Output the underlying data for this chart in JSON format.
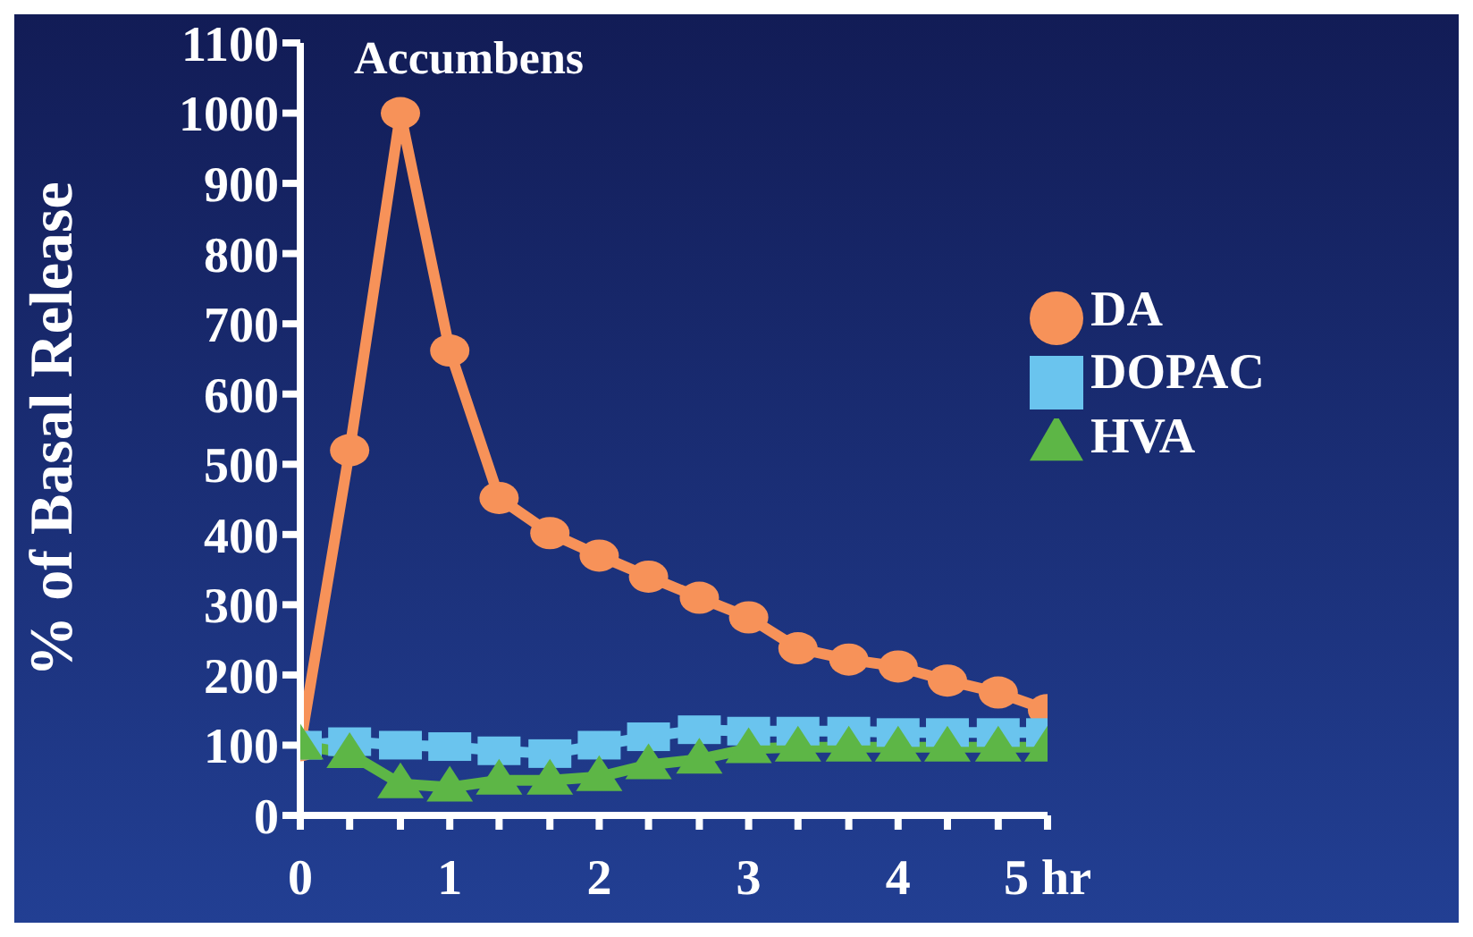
{
  "chart_data": {
    "type": "line",
    "ylabel": "% of Basal Release",
    "annotations": [
      "Accumbens"
    ],
    "x": [
      0,
      0.33,
      0.67,
      1,
      1.33,
      1.67,
      2,
      2.33,
      2.67,
      3,
      3.33,
      3.67,
      4,
      4.33,
      4.67,
      5
    ],
    "xlim": [
      0,
      5
    ],
    "xticks": [
      0,
      {
        "value": 0.33,
        "label": null
      },
      {
        "value": 0.67,
        "label": null
      },
      1,
      {
        "value": 1.33,
        "label": null
      },
      {
        "value": 1.67,
        "label": null
      },
      2,
      {
        "value": 2.33,
        "label": null
      },
      {
        "value": 2.67,
        "label": null
      },
      3,
      {
        "value": 3.33,
        "label": null
      },
      {
        "value": 3.67,
        "label": null
      },
      4,
      {
        "value": 4.33,
        "label": null
      },
      {
        "value": 4.67,
        "label": null
      },
      {
        "value": 5,
        "label": "5 hr"
      }
    ],
    "ylim": [
      0,
      1100
    ],
    "yticks": [
      0,
      100,
      200,
      300,
      400,
      500,
      600,
      700,
      800,
      900,
      1000,
      1100
    ],
    "series": [
      {
        "name": "DA",
        "color": "#f79259",
        "marker": "circle",
        "values": [
          100,
          520,
          1000,
          662,
          452,
          402,
          370,
          340,
          310,
          282,
          238,
          222,
          212,
          192,
          175,
          150
        ]
      },
      {
        "name": "DOPAC",
        "color": "#6ac4ee",
        "marker": "square",
        "values": [
          100,
          105,
          100,
          98,
          92,
          88,
          100,
          112,
          122,
          120,
          120,
          120,
          118,
          118,
          118,
          118
        ]
      },
      {
        "name": "HVA",
        "color": "#5db646",
        "marker": "triangle",
        "values": [
          100,
          88,
          45,
          40,
          50,
          50,
          55,
          72,
          80,
          95,
          97,
          97,
          97,
          97,
          97,
          97
        ]
      }
    ],
    "legend": "right",
    "grid": false
  }
}
